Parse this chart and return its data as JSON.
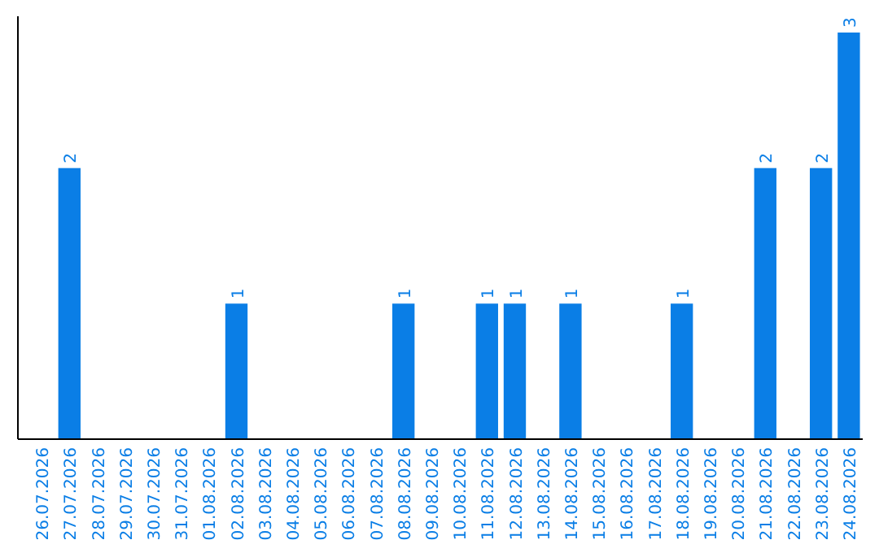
{
  "chart_data": {
    "type": "bar",
    "categories": [
      "26.07.2026",
      "27.07.2026",
      "28.07.2026",
      "29.07.2026",
      "30.07.2026",
      "31.07.2026",
      "01.08.2026",
      "02.08.2026",
      "03.08.2026",
      "04.08.2026",
      "05.08.2026",
      "06.08.2026",
      "07.08.2026",
      "08.08.2026",
      "09.08.2026",
      "10.08.2026",
      "11.08.2026",
      "12.08.2026",
      "13.08.2026",
      "14.08.2026",
      "15.08.2026",
      "16.08.2026",
      "17.08.2026",
      "18.08.2026",
      "19.08.2026",
      "20.08.2026",
      "21.08.2026",
      "22.08.2026",
      "23.08.2026",
      "24.08.2026"
    ],
    "values": [
      0,
      2,
      0,
      0,
      0,
      0,
      0,
      1,
      0,
      0,
      0,
      0,
      0,
      1,
      0,
      0,
      1,
      1,
      0,
      1,
      0,
      0,
      0,
      1,
      0,
      0,
      2,
      0,
      2,
      3
    ],
    "value_labels": [
      null,
      "2",
      null,
      null,
      null,
      null,
      null,
      "1",
      null,
      null,
      null,
      null,
      null,
      "1",
      null,
      null,
      "1",
      "1",
      null,
      "1",
      null,
      null,
      null,
      "1",
      null,
      null,
      "2",
      null,
      "2",
      "3"
    ],
    "color": "#0a7ee6",
    "ylim": [
      0,
      3
    ],
    "tick_labels": "x"
  }
}
